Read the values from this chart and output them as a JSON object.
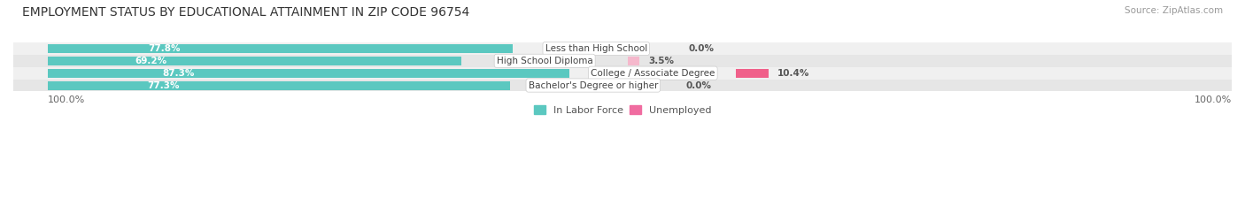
{
  "title": "EMPLOYMENT STATUS BY EDUCATIONAL ATTAINMENT IN ZIP CODE 96754",
  "source": "Source: ZipAtlas.com",
  "categories": [
    "Less than High School",
    "High School Diploma",
    "College / Associate Degree",
    "Bachelor's Degree or higher"
  ],
  "labor_force": [
    77.8,
    69.2,
    87.3,
    77.3
  ],
  "unemployed": [
    0.0,
    3.5,
    10.4,
    0.0
  ],
  "labor_force_color": "#5BC8C0",
  "unemployed_color_row0": "#F5B8CC",
  "unemployed_color_row1": "#F5B8CC",
  "unemployed_color_row2": "#F0608A",
  "unemployed_color_row3": "#F5B8CC",
  "unemployed_colors": [
    "#F5B8CC",
    "#F5B8CC",
    "#F0608A",
    "#F5B8CC"
  ],
  "row_bg_colors": [
    "#EFEFEF",
    "#E8E8E8",
    "#EBEBEB",
    "#E8E8E8"
  ],
  "max_val": 100.0,
  "x_left_label": "100.0%",
  "x_right_label": "100.0%",
  "legend_items": [
    "In Labor Force",
    "Unemployed"
  ],
  "legend_colors": [
    "#5BC8C0",
    "#F06CA0"
  ],
  "title_fontsize": 10,
  "source_fontsize": 7.5,
  "bar_label_fontsize": 7.5,
  "category_label_fontsize": 7.5,
  "legend_fontsize": 8,
  "axis_label_fontsize": 8
}
